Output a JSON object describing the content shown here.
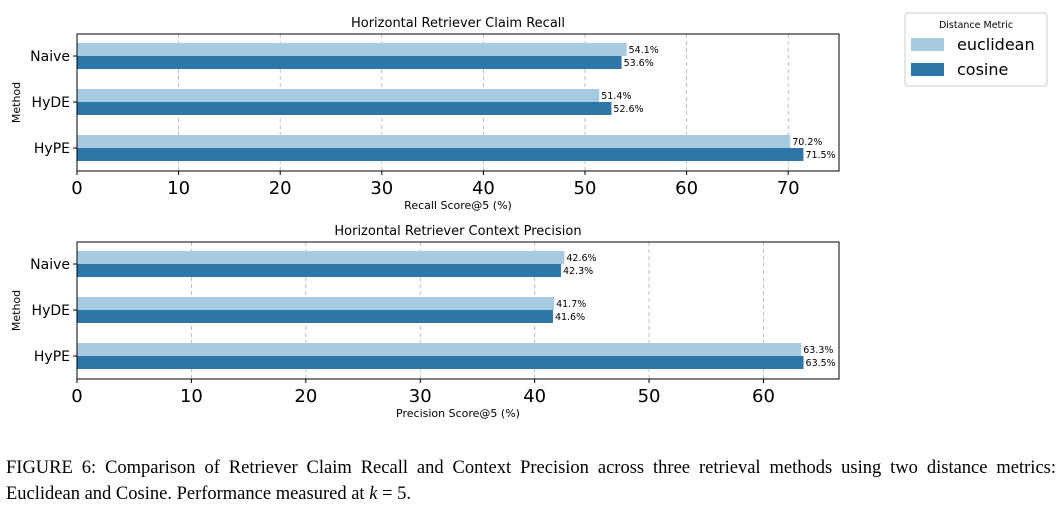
{
  "figure": {
    "caption_lead": "FIGURE 6: Comparison of Retriever Claim Recall and Context Precision across three retrieval methods using two distance metrics: Euclidean and Cosine. Performance measured at ",
    "caption_math_var": "k",
    "caption_math_rest": " = 5",
    "caption_end": "."
  },
  "legend": {
    "title": "Distance Metric",
    "placement": "upper-right outside",
    "entries": [
      "euclidean",
      "cosine"
    ]
  },
  "colors": {
    "euclidean": "#a6cadf",
    "cosine": "#2f76a8",
    "grid": "#b0b0b0"
  },
  "chart_data": [
    {
      "type": "bar",
      "orientation": "horizontal",
      "title": "Horizontal Retriever Claim Recall",
      "xlabel": "Recall Score@5 (%)",
      "ylabel": "Method",
      "categories": [
        "Naive",
        "HyDE",
        "HyPE"
      ],
      "series": [
        {
          "name": "euclidean",
          "values": [
            54.1,
            51.4,
            70.2
          ],
          "labels": [
            "54.1%",
            "51.4%",
            "70.2%"
          ]
        },
        {
          "name": "cosine",
          "values": [
            53.6,
            52.6,
            71.5
          ],
          "labels": [
            "53.6%",
            "52.6%",
            "71.5%"
          ]
        }
      ],
      "xlim": [
        0,
        75
      ],
      "xticks": [
        0,
        10,
        20,
        30,
        40,
        50,
        60,
        70
      ],
      "grid": "x dashed"
    },
    {
      "type": "bar",
      "orientation": "horizontal",
      "title": "Horizontal Retriever Context Precision",
      "xlabel": "Precision Score@5 (%)",
      "ylabel": "Method",
      "categories": [
        "Naive",
        "HyDE",
        "HyPE"
      ],
      "series": [
        {
          "name": "euclidean",
          "values": [
            42.6,
            41.7,
            63.3
          ],
          "labels": [
            "42.6%",
            "41.7%",
            "63.3%"
          ]
        },
        {
          "name": "cosine",
          "values": [
            42.3,
            41.6,
            63.5
          ],
          "labels": [
            "42.3%",
            "41.6%",
            "63.5%"
          ]
        }
      ],
      "xlim": [
        0,
        66.6
      ],
      "xticks": [
        0,
        10,
        20,
        30,
        40,
        50,
        60
      ],
      "grid": "x dashed"
    }
  ]
}
